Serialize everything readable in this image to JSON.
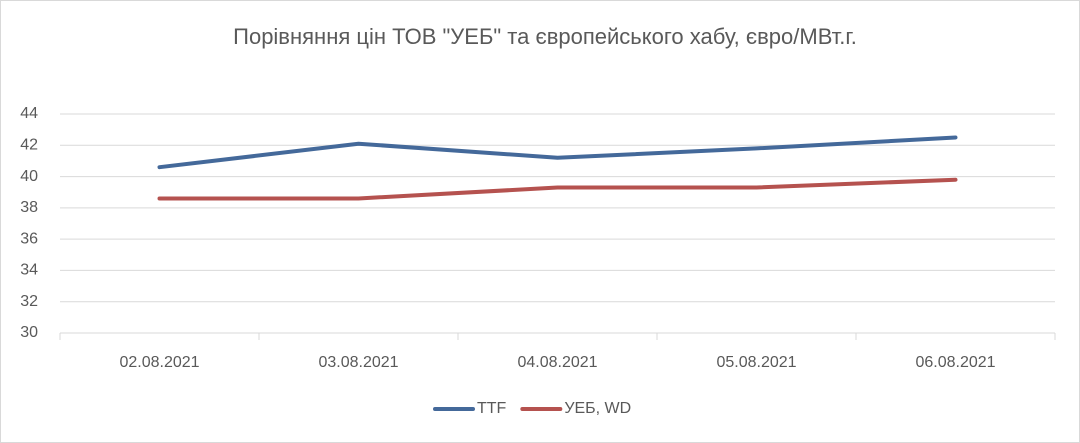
{
  "chart_data": {
    "type": "line",
    "title": "Порівняння цін ТОВ \"УЕБ\" та європейського хабу, євро/МВт.г.",
    "categories": [
      "02.08.2021",
      "03.08.2021",
      "04.08.2021",
      "05.08.2021",
      "06.08.2021"
    ],
    "series": [
      {
        "name": "TTF",
        "color": "#44699a",
        "values": [
          40.6,
          42.1,
          41.2,
          41.8,
          42.5
        ]
      },
      {
        "name": "УЕБ, WD",
        "color": "#b5524f",
        "values": [
          38.6,
          38.6,
          39.3,
          39.3,
          39.8
        ]
      }
    ],
    "ylim": [
      30,
      44
    ],
    "yticks": [
      30,
      32,
      34,
      36,
      38,
      40,
      42,
      44
    ],
    "grid": true,
    "legend": "bottom"
  }
}
